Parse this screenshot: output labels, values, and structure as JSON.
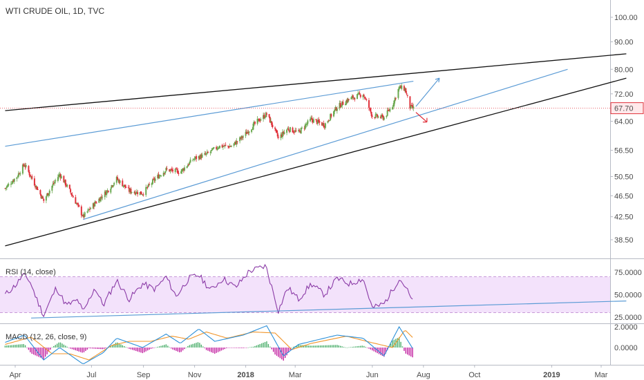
{
  "header": {
    "title": "WTI CRUDE OIL, 1D, TVC"
  },
  "colors": {
    "up": "#6aa84f",
    "down": "#e0303a",
    "rsi_line": "#8a3aa6",
    "rsi_band": "#f3e2fb",
    "macd_line": "#2b8fd8",
    "signal_line": "#f0952a",
    "hist_pos": "#4aae6a",
    "hist_neg": "#c21fa0",
    "wedge_line": "#111111",
    "channel_line": "#5b9bd5",
    "arrow_up": "#5b9bd5",
    "arrow_down": "#e0303a",
    "last_price_bg": "#ffe9eb",
    "last_price_border": "#e0303a"
  },
  "price_axis": {
    "ticks": [
      "100.00",
      "90.00",
      "80.00",
      "72.00",
      "64.00",
      "56.50",
      "50.50",
      "46.50",
      "42.50",
      "38.50"
    ],
    "last_price": "67.70"
  },
  "time_axis": {
    "labels": [
      {
        "text": "Apr",
        "bold": false
      },
      {
        "text": "Jul",
        "bold": false
      },
      {
        "text": "Sep",
        "bold": false
      },
      {
        "text": "Nov",
        "bold": false
      },
      {
        "text": "2018",
        "bold": true
      },
      {
        "text": "Mar",
        "bold": false
      },
      {
        "text": "Jun",
        "bold": false
      },
      {
        "text": "Aug",
        "bold": false
      },
      {
        "text": "Oct",
        "bold": false
      },
      {
        "text": "2019",
        "bold": true
      },
      {
        "text": "Mar",
        "bold": false
      }
    ]
  },
  "rsi_pane": {
    "title": "RSI (14, close)",
    "ticks": [
      "75.0000",
      "50.0000",
      "25.0000"
    ],
    "band": [
      30,
      70
    ]
  },
  "macd_pane": {
    "title": "MACD (12, 26, close, 9)",
    "ticks": [
      "2.0000",
      "0.0000"
    ]
  },
  "chart_data": {
    "type": "candlestick",
    "title": "WTI CRUDE OIL, 1D, TVC",
    "scale": "log",
    "ylim": [
      36,
      105
    ],
    "x_labels": [
      "Apr",
      "Jul",
      "Sep",
      "Nov",
      "2018",
      "Mar",
      "Jun",
      "Aug",
      "Oct",
      "2019",
      "Mar"
    ],
    "close_path": [
      [
        "2017-03-20",
        48.0
      ],
      [
        "2017-04-03",
        50.5
      ],
      [
        "2017-04-12",
        53.2
      ],
      [
        "2017-04-24",
        49.0
      ],
      [
        "2017-05-05",
        45.5
      ],
      [
        "2017-05-15",
        48.5
      ],
      [
        "2017-05-24",
        51.0
      ],
      [
        "2017-06-05",
        47.5
      ],
      [
        "2017-06-21",
        42.5
      ],
      [
        "2017-07-05",
        45.0
      ],
      [
        "2017-07-20",
        47.5
      ],
      [
        "2017-07-31",
        50.0
      ],
      [
        "2017-08-15",
        47.5
      ],
      [
        "2017-08-31",
        47.0
      ],
      [
        "2017-09-15",
        50.0
      ],
      [
        "2017-09-28",
        52.0
      ],
      [
        "2017-10-15",
        51.5
      ],
      [
        "2017-10-31",
        54.5
      ],
      [
        "2017-11-15",
        55.5
      ],
      [
        "2017-11-30",
        57.5
      ],
      [
        "2017-12-15",
        57.5
      ],
      [
        "2017-12-29",
        60.0
      ],
      [
        "2018-01-15",
        64.0
      ],
      [
        "2018-01-26",
        66.0
      ],
      [
        "2018-02-09",
        59.5
      ],
      [
        "2018-02-20",
        62.0
      ],
      [
        "2018-03-05",
        61.0
      ],
      [
        "2018-03-20",
        64.5
      ],
      [
        "2018-04-05",
        63.0
      ],
      [
        "2018-04-20",
        68.0
      ],
      [
        "2018-05-05",
        70.5
      ],
      [
        "2018-05-21",
        72.0
      ],
      [
        "2018-06-01",
        65.5
      ],
      [
        "2018-06-15",
        65.0
      ],
      [
        "2018-06-25",
        68.5
      ],
      [
        "2018-07-03",
        74.0
      ],
      [
        "2018-07-10",
        73.5
      ],
      [
        "2018-07-16",
        68.0
      ],
      [
        "2018-07-20",
        67.7
      ]
    ],
    "rsi": {
      "name": "RSI (14, close)",
      "values": [
        [
          "2017-03-20",
          50
        ],
        [
          "2017-04-03",
          62
        ],
        [
          "2017-04-10",
          72
        ],
        [
          "2017-04-18",
          66
        ],
        [
          "2017-04-28",
          42
        ],
        [
          "2017-05-05",
          27
        ],
        [
          "2017-05-20",
          58
        ],
        [
          "2017-06-01",
          38
        ],
        [
          "2017-06-15",
          44
        ],
        [
          "2017-06-21",
          30
        ],
        [
          "2017-07-05",
          58
        ],
        [
          "2017-07-15",
          38
        ],
        [
          "2017-07-31",
          66
        ],
        [
          "2017-08-15",
          45
        ],
        [
          "2017-08-31",
          62
        ],
        [
          "2017-09-15",
          56
        ],
        [
          "2017-09-28",
          70
        ],
        [
          "2017-10-10",
          48
        ],
        [
          "2017-10-25",
          68
        ],
        [
          "2017-11-06",
          72
        ],
        [
          "2017-11-20",
          55
        ],
        [
          "2017-12-05",
          68
        ],
        [
          "2017-12-20",
          58
        ],
        [
          "2018-01-05",
          76
        ],
        [
          "2018-01-25",
          82
        ],
        [
          "2018-02-09",
          32
        ],
        [
          "2018-02-20",
          58
        ],
        [
          "2018-03-05",
          45
        ],
        [
          "2018-03-20",
          62
        ],
        [
          "2018-04-05",
          50
        ],
        [
          "2018-04-20",
          68
        ],
        [
          "2018-05-05",
          62
        ],
        [
          "2018-05-21",
          68
        ],
        [
          "2018-06-01",
          35
        ],
        [
          "2018-06-15",
          40
        ],
        [
          "2018-06-25",
          55
        ],
        [
          "2018-07-03",
          68
        ],
        [
          "2018-07-10",
          60
        ],
        [
          "2018-07-20",
          40
        ]
      ],
      "band_lines": [
        30,
        70
      ],
      "ylim": [
        20,
        85
      ]
    },
    "macd": {
      "name": "MACD (12, 26, close, 9)",
      "macd_values": [
        [
          "2017-03-20",
          0.5
        ],
        [
          "2017-04-12",
          1.2
        ],
        [
          "2017-05-05",
          -1.2
        ],
        [
          "2017-05-24",
          0.0
        ],
        [
          "2017-06-21",
          -1.6
        ],
        [
          "2017-07-15",
          -0.5
        ],
        [
          "2017-07-31",
          0.9
        ],
        [
          "2017-08-31",
          0.0
        ],
        [
          "2017-09-28",
          1.3
        ],
        [
          "2017-10-15",
          0.4
        ],
        [
          "2017-11-06",
          1.8
        ],
        [
          "2017-11-25",
          0.6
        ],
        [
          "2017-12-29",
          1.2
        ],
        [
          "2018-01-26",
          2.1
        ],
        [
          "2018-02-15",
          -0.8
        ],
        [
          "2018-03-05",
          0.3
        ],
        [
          "2018-04-20",
          1.2
        ],
        [
          "2018-05-21",
          0.9
        ],
        [
          "2018-06-15",
          -0.8
        ],
        [
          "2018-07-03",
          2.0
        ],
        [
          "2018-07-20",
          -0.2
        ]
      ],
      "signal_values": [
        [
          "2017-03-20",
          0.3
        ],
        [
          "2017-04-20",
          1.0
        ],
        [
          "2017-05-15",
          -0.6
        ],
        [
          "2017-06-05",
          -0.6
        ],
        [
          "2017-06-28",
          -1.2
        ],
        [
          "2017-07-25",
          0.2
        ],
        [
          "2017-08-15",
          0.6
        ],
        [
          "2017-09-10",
          0.6
        ],
        [
          "2017-10-05",
          1.1
        ],
        [
          "2017-10-25",
          0.8
        ],
        [
          "2017-11-15",
          1.5
        ],
        [
          "2017-12-10",
          0.9
        ],
        [
          "2018-01-10",
          1.5
        ],
        [
          "2018-02-05",
          1.4
        ],
        [
          "2018-02-25",
          -0.2
        ],
        [
          "2018-03-20",
          0.4
        ],
        [
          "2018-05-01",
          1.1
        ],
        [
          "2018-05-30",
          0.5
        ],
        [
          "2018-06-25",
          0.0
        ],
        [
          "2018-07-10",
          1.7
        ],
        [
          "2018-07-20",
          0.9
        ]
      ],
      "ylim": [
        -2.2,
        2.6
      ]
    },
    "drawings": {
      "wedge_upper": [
        [
          "2017-03-20",
          67.0
        ],
        [
          "2019-03-31",
          85.5
        ]
      ],
      "wedge_lower": [
        [
          "2017-03-20",
          37.5
        ],
        [
          "2019-03-31",
          77.0
        ]
      ],
      "channel_upper": [
        [
          "2017-03-20",
          57.5
        ],
        [
          "2018-07-20",
          76.0
        ]
      ],
      "channel_lower": [
        [
          "2017-06-21",
          42.0
        ],
        [
          "2019-01-20",
          80.0
        ]
      ],
      "rsi_trendline": [
        [
          "2017-04-20",
          24
        ],
        [
          "2019-03-31",
          43
        ]
      ]
    }
  }
}
